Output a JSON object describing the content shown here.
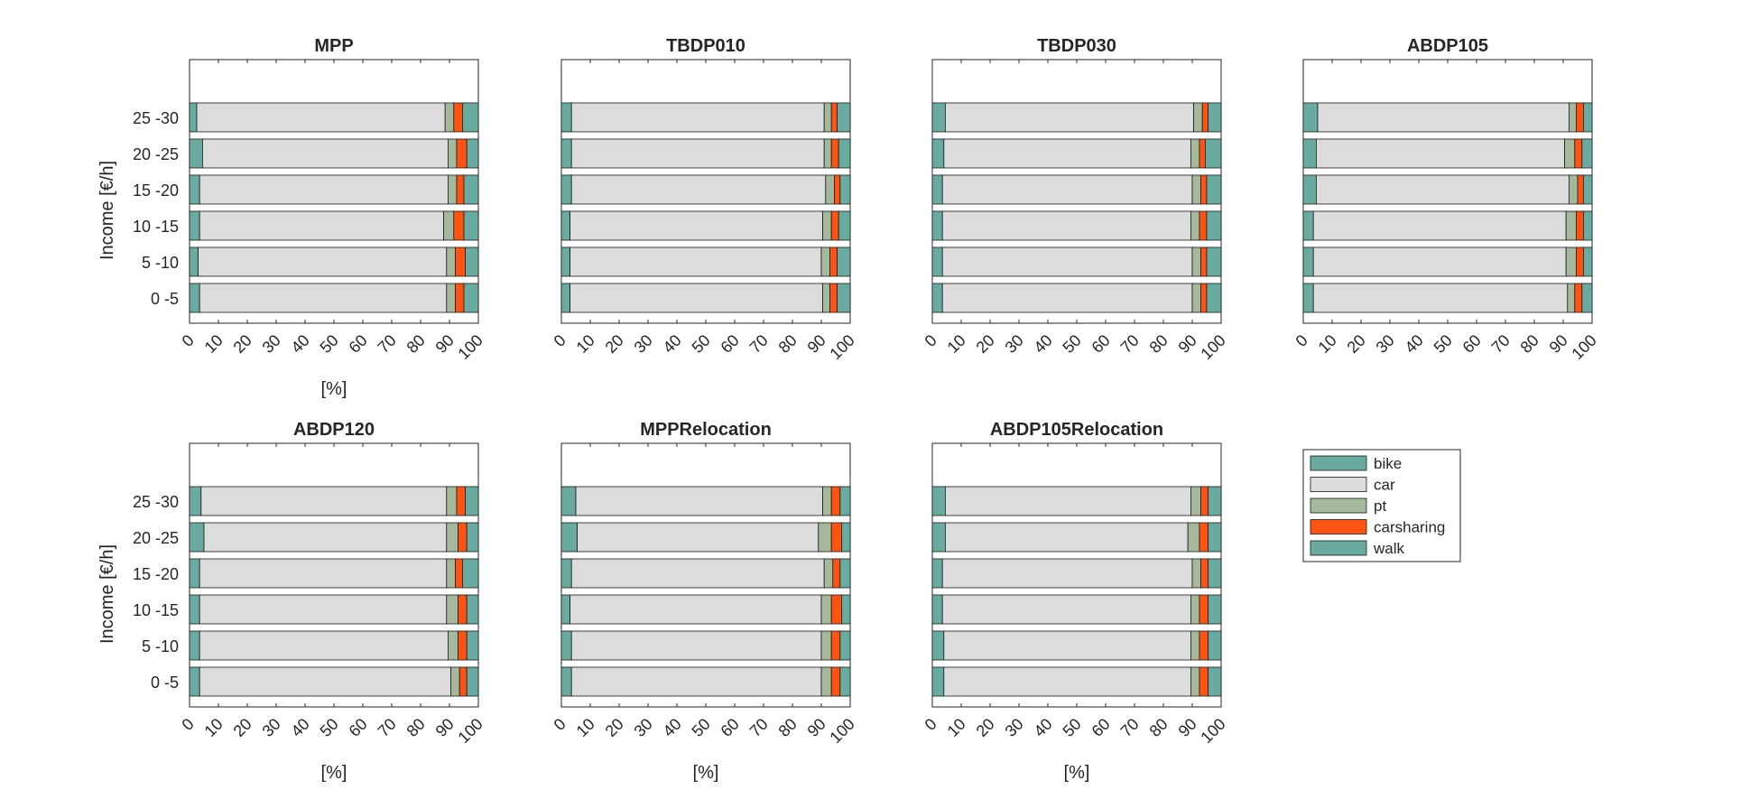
{
  "chart_data": {
    "type": "bar",
    "orientation": "horizontal",
    "stacked": true,
    "ylabel": "Income [€/h]",
    "xlabel": "[%]",
    "xlim": [
      0,
      100
    ],
    "xticks": [
      "0",
      "10",
      "20",
      "30",
      "40",
      "50",
      "60",
      "70",
      "80",
      "90",
      "100"
    ],
    "categories": [
      "0 -5",
      "5 -10",
      "10 -15",
      "15 -20",
      "20 -25",
      "25 -30"
    ],
    "legend": {
      "position": "right",
      "entries": [
        {
          "name": "bike",
          "color": "#6aaba1"
        },
        {
          "name": "car",
          "color": "#dcdcdc"
        },
        {
          "name": "pt",
          "color": "#a4b99b"
        },
        {
          "name": "carsharing",
          "color": "#ff5312"
        },
        {
          "name": "walk",
          "color": "#6aaba1"
        }
      ]
    },
    "panels": [
      {
        "title": "MPP",
        "xlabel": "[%]",
        "ylabel": "Income [€/h]",
        "series": {
          "bike": [
            3.5,
            3.0,
            3.5,
            3.5,
            4.5,
            2.5
          ],
          "car": [
            85.5,
            86.0,
            84.5,
            86.0,
            85.0,
            86.0
          ],
          "pt": [
            3.0,
            3.0,
            3.5,
            3.0,
            3.0,
            3.0
          ],
          "carsharing": [
            3.0,
            3.5,
            3.5,
            2.5,
            3.5,
            3.0
          ],
          "walk": [
            5.0,
            4.5,
            5.0,
            5.0,
            4.0,
            5.5
          ]
        }
      },
      {
        "title": "TBDP010",
        "xlabel": "",
        "ylabel": "",
        "series": {
          "bike": [
            3.0,
            3.0,
            3.0,
            3.5,
            3.5,
            3.5
          ],
          "car": [
            87.5,
            87.0,
            87.5,
            88.0,
            87.5,
            87.5
          ],
          "pt": [
            2.5,
            3.0,
            3.0,
            3.0,
            2.5,
            2.5
          ],
          "carsharing": [
            2.5,
            2.5,
            2.5,
            2.0,
            2.5,
            2.0
          ],
          "walk": [
            4.5,
            4.5,
            4.0,
            3.5,
            4.0,
            4.5
          ]
        }
      },
      {
        "title": "TBDP030",
        "xlabel": "",
        "ylabel": "",
        "series": {
          "bike": [
            3.5,
            3.5,
            3.5,
            3.5,
            4.0,
            4.5
          ],
          "car": [
            86.5,
            86.5,
            86.0,
            86.5,
            85.5,
            86.0
          ],
          "pt": [
            3.0,
            3.0,
            3.0,
            3.0,
            3.0,
            3.0
          ],
          "carsharing": [
            2.0,
            2.0,
            2.5,
            2.0,
            2.0,
            2.0
          ],
          "walk": [
            5.0,
            5.0,
            5.0,
            5.0,
            5.5,
            4.5
          ]
        }
      },
      {
        "title": "ABDP105",
        "xlabel": "",
        "ylabel": "",
        "series": {
          "bike": [
            3.5,
            3.5,
            3.5,
            4.5,
            4.5,
            5.0
          ],
          "car": [
            88.0,
            87.5,
            87.5,
            87.5,
            86.0,
            87.0
          ],
          "pt": [
            2.5,
            3.5,
            3.5,
            3.0,
            3.5,
            2.5
          ],
          "carsharing": [
            2.5,
            2.5,
            2.5,
            2.0,
            2.5,
            2.5
          ],
          "walk": [
            3.5,
            3.0,
            3.0,
            3.0,
            3.5,
            3.0
          ]
        }
      },
      {
        "title": "ABDP120",
        "xlabel": "[%]",
        "ylabel": "Income [€/h]",
        "series": {
          "bike": [
            3.5,
            3.5,
            3.5,
            3.5,
            5.0,
            4.0
          ],
          "car": [
            87.0,
            86.0,
            85.5,
            85.5,
            84.0,
            85.0
          ],
          "pt": [
            3.0,
            3.5,
            4.0,
            3.0,
            4.0,
            3.5
          ],
          "carsharing": [
            2.5,
            3.0,
            3.0,
            2.5,
            3.0,
            3.0
          ],
          "walk": [
            4.0,
            4.0,
            4.0,
            5.5,
            4.0,
            4.5
          ]
        }
      },
      {
        "title": "MPPRelocation",
        "xlabel": "[%]",
        "ylabel": "",
        "series": {
          "bike": [
            3.5,
            3.5,
            3.0,
            3.5,
            5.5,
            5.0
          ],
          "car": [
            86.5,
            86.5,
            87.0,
            87.5,
            83.5,
            85.5
          ],
          "pt": [
            3.5,
            3.5,
            3.5,
            3.0,
            4.5,
            3.0
          ],
          "carsharing": [
            3.0,
            3.0,
            3.5,
            2.5,
            3.5,
            3.0
          ],
          "walk": [
            3.5,
            3.5,
            3.0,
            3.5,
            3.0,
            3.5
          ]
        }
      },
      {
        "title": "ABDP105Relocation",
        "xlabel": "[%]",
        "ylabel": "",
        "series": {
          "bike": [
            4.0,
            4.0,
            3.5,
            3.5,
            4.5,
            4.5
          ],
          "car": [
            85.5,
            85.5,
            86.0,
            86.5,
            84.0,
            85.0
          ],
          "pt": [
            3.0,
            3.0,
            3.0,
            3.0,
            4.0,
            3.5
          ],
          "carsharing": [
            3.0,
            3.0,
            3.0,
            2.5,
            3.0,
            2.5
          ],
          "walk": [
            4.5,
            4.5,
            4.5,
            4.5,
            4.5,
            4.5
          ]
        }
      }
    ]
  }
}
